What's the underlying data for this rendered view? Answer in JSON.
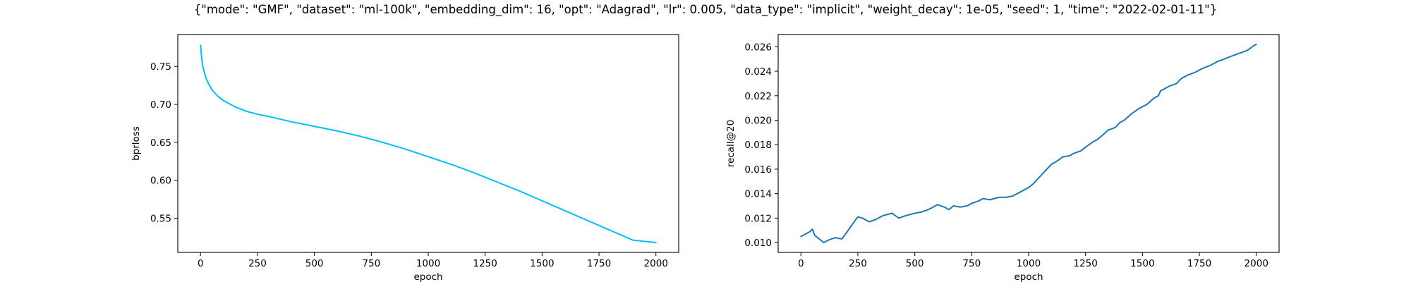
{
  "figure": {
    "suptitle": "{\"mode\": \"GMF\", \"dataset\": \"ml-100k\", \"embedding_dim\": 16, \"opt\": \"Adagrad\", \"lr\": 0.005, \"data_type\": \"implicit\", \"weight_decay\": 1e-05, \"seed\": 1, \"time\": \"2022-02-01-11\"}"
  },
  "chart_data": [
    {
      "type": "line",
      "xlabel": "epoch",
      "ylabel": "bprloss",
      "xlim": [
        -100,
        2100
      ],
      "ylim": [
        0.505,
        0.792
      ],
      "xticks": [
        0,
        250,
        500,
        750,
        1000,
        1250,
        1500,
        1750,
        2000
      ],
      "yticks": [
        0.55,
        0.6,
        0.65,
        0.7,
        0.75
      ],
      "ytick_decimals": 2,
      "grid": false,
      "series": [
        {
          "color": "#00bfff",
          "x": [
            0,
            5,
            10,
            20,
            30,
            50,
            75,
            100,
            150,
            200,
            250,
            300,
            400,
            500,
            600,
            700,
            800,
            900,
            1000,
            1100,
            1200,
            1300,
            1400,
            1500,
            1600,
            1700,
            1800,
            1900,
            2000
          ],
          "y": [
            0.778,
            0.76,
            0.75,
            0.738,
            0.73,
            0.719,
            0.711,
            0.705,
            0.697,
            0.691,
            0.687,
            0.684,
            0.677,
            0.671,
            0.665,
            0.658,
            0.65,
            0.641,
            0.631,
            0.621,
            0.61,
            0.598,
            0.586,
            0.573,
            0.56,
            0.547,
            0.534,
            0.521,
            0.518
          ]
        }
      ]
    },
    {
      "type": "line",
      "xlabel": "epoch",
      "ylabel": "recall@20",
      "xlim": [
        -100,
        2100
      ],
      "ylim": [
        0.0092,
        0.027
      ],
      "xticks": [
        0,
        250,
        500,
        750,
        1000,
        1250,
        1500,
        1750,
        2000
      ],
      "yticks": [
        0.01,
        0.012,
        0.014,
        0.016,
        0.018,
        0.02,
        0.022,
        0.024,
        0.026
      ],
      "ytick_decimals": 3,
      "grid": false,
      "series": [
        {
          "color": "#1f77b4",
          "x": [
            0,
            20,
            40,
            50,
            60,
            80,
            100,
            120,
            150,
            180,
            200,
            230,
            250,
            270,
            300,
            330,
            360,
            400,
            430,
            460,
            500,
            530,
            560,
            600,
            630,
            650,
            670,
            700,
            730,
            750,
            780,
            800,
            830,
            870,
            900,
            930,
            960,
            1000,
            1020,
            1050,
            1080,
            1100,
            1120,
            1150,
            1180,
            1200,
            1230,
            1250,
            1280,
            1300,
            1320,
            1350,
            1380,
            1400,
            1420,
            1450,
            1480,
            1500,
            1520,
            1550,
            1570,
            1580,
            1600,
            1620,
            1650,
            1670,
            1700,
            1730,
            1760,
            1800,
            1830,
            1860,
            1900,
            1930,
            1960,
            1990,
            2000
          ],
          "y": [
            0.0105,
            0.0107,
            0.0109,
            0.0111,
            0.0106,
            0.0103,
            0.01,
            0.0102,
            0.0104,
            0.0103,
            0.0108,
            0.0116,
            0.0121,
            0.012,
            0.0117,
            0.0119,
            0.0122,
            0.0124,
            0.012,
            0.0122,
            0.0124,
            0.0125,
            0.0127,
            0.0131,
            0.0129,
            0.0127,
            0.013,
            0.0129,
            0.013,
            0.0132,
            0.0134,
            0.0136,
            0.0135,
            0.0137,
            0.0137,
            0.0138,
            0.0141,
            0.0145,
            0.0148,
            0.0154,
            0.016,
            0.0164,
            0.0166,
            0.017,
            0.0171,
            0.0173,
            0.0175,
            0.0178,
            0.0182,
            0.0184,
            0.0187,
            0.0192,
            0.0194,
            0.0198,
            0.02,
            0.0205,
            0.0209,
            0.0211,
            0.0213,
            0.0218,
            0.022,
            0.0224,
            0.0226,
            0.0228,
            0.023,
            0.0234,
            0.0237,
            0.0239,
            0.0242,
            0.0245,
            0.0248,
            0.025,
            0.0253,
            0.0255,
            0.0257,
            0.0261,
            0.0262
          ]
        }
      ]
    }
  ]
}
